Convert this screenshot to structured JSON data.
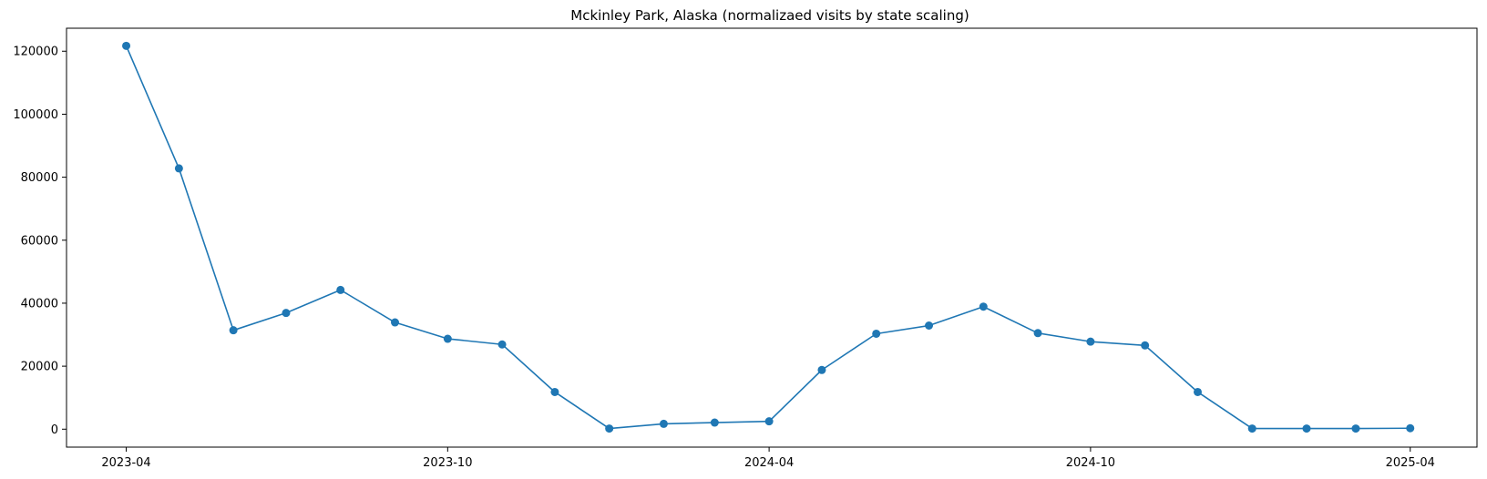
{
  "chart_data": {
    "type": "line",
    "title": "Mckinley Park, Alaska (normalizaed visits by state scaling)",
    "xlabel": "",
    "ylabel": "",
    "x_ticks": [
      "2023-04",
      "2023-10",
      "2024-04",
      "2024-10",
      "2025-04"
    ],
    "y_ticks": [
      0,
      20000,
      40000,
      60000,
      80000,
      100000,
      120000
    ],
    "ylim": [
      -5700,
      127300
    ],
    "xlim": [
      "2023-02-26",
      "2025-05-09"
    ],
    "grid": false,
    "legend": false,
    "series": [
      {
        "color": "#1f77b4",
        "marker": "circle",
        "points": [
          {
            "x": "2023-04-01",
            "y": 121700
          },
          {
            "x": "2023-05-01",
            "y": 82800
          },
          {
            "x": "2023-06-01",
            "y": 31400
          },
          {
            "x": "2023-07-01",
            "y": 36900
          },
          {
            "x": "2023-08-01",
            "y": 44200
          },
          {
            "x": "2023-09-01",
            "y": 33900
          },
          {
            "x": "2023-10-01",
            "y": 28700
          },
          {
            "x": "2023-11-01",
            "y": 26900
          },
          {
            "x": "2023-12-01",
            "y": 11800
          },
          {
            "x": "2024-01-01",
            "y": 200
          },
          {
            "x": "2024-02-01",
            "y": 1700
          },
          {
            "x": "2024-03-01",
            "y": 2100
          },
          {
            "x": "2024-04-01",
            "y": 2500
          },
          {
            "x": "2024-05-01",
            "y": 18800
          },
          {
            "x": "2024-06-01",
            "y": 30300
          },
          {
            "x": "2024-07-01",
            "y": 32900
          },
          {
            "x": "2024-08-01",
            "y": 38900
          },
          {
            "x": "2024-09-01",
            "y": 30500
          },
          {
            "x": "2024-10-01",
            "y": 27800
          },
          {
            "x": "2024-11-01",
            "y": 26600
          },
          {
            "x": "2024-12-01",
            "y": 11800
          },
          {
            "x": "2025-01-01",
            "y": 200
          },
          {
            "x": "2025-02-01",
            "y": 200
          },
          {
            "x": "2025-03-01",
            "y": 200
          },
          {
            "x": "2025-04-01",
            "y": 300
          }
        ]
      }
    ]
  }
}
